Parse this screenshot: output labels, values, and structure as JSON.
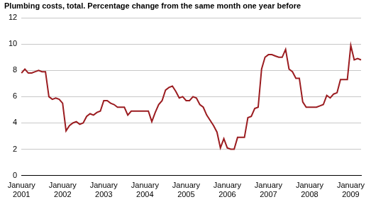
{
  "chart_data": {
    "type": "line",
    "title": "Plumbing costs, total. Percentage change from the same month one year before",
    "categories": [
      "January 2001",
      null,
      null,
      null,
      null,
      null,
      null,
      null,
      null,
      null,
      null,
      null,
      "January 2002",
      null,
      null,
      null,
      null,
      null,
      null,
      null,
      null,
      null,
      null,
      null,
      "January 2003",
      null,
      null,
      null,
      null,
      null,
      null,
      null,
      null,
      null,
      null,
      null,
      "January 2004",
      null,
      null,
      null,
      null,
      null,
      null,
      null,
      null,
      null,
      null,
      null,
      "January 2005",
      null,
      null,
      null,
      null,
      null,
      null,
      null,
      null,
      null,
      null,
      null,
      "January 2006",
      null,
      null,
      null,
      null,
      null,
      null,
      null,
      null,
      null,
      null,
      null,
      "January 2007",
      null,
      null,
      null,
      null,
      null,
      null,
      null,
      null,
      null,
      null,
      null,
      "January 2008",
      null,
      null,
      null,
      null,
      null,
      null,
      null,
      null,
      null,
      null,
      null,
      "January 2009",
      null,
      null,
      null
    ],
    "values": [
      7.8,
      8.1,
      7.8,
      7.8,
      7.9,
      8.0,
      7.9,
      7.9,
      6.0,
      5.8,
      5.9,
      5.8,
      5.5,
      3.4,
      3.8,
      4.0,
      4.1,
      3.9,
      4.0,
      4.5,
      4.7,
      4.6,
      4.8,
      4.9,
      5.7,
      5.7,
      5.5,
      5.4,
      5.2,
      5.2,
      5.2,
      4.6,
      4.9,
      4.9,
      4.9,
      4.9,
      4.9,
      4.9,
      4.1,
      4.8,
      5.4,
      5.7,
      6.5,
      6.7,
      6.8,
      6.4,
      5.9,
      6.0,
      5.7,
      5.7,
      6.0,
      5.9,
      5.4,
      5.2,
      4.6,
      4.2,
      3.8,
      3.3,
      2.1,
      2.8,
      2.1,
      2.0,
      2.0,
      2.9,
      2.9,
      2.9,
      4.4,
      4.5,
      5.1,
      5.2,
      8.1,
      9.0,
      9.2,
      9.2,
      9.1,
      9.0,
      9.0,
      9.6,
      8.1,
      7.9,
      7.4,
      7.4,
      5.6,
      5.2,
      5.2,
      5.2,
      5.2,
      5.3,
      5.4,
      6.1,
      5.9,
      6.2,
      6.3,
      7.3,
      7.3,
      7.3,
      9.9,
      8.8,
      8.9,
      8.8
    ],
    "color": "#9b1c20",
    "ylim": [
      0,
      12
    ],
    "yticks": [
      0,
      2,
      4,
      6,
      8,
      10,
      12
    ],
    "grid": true
  }
}
